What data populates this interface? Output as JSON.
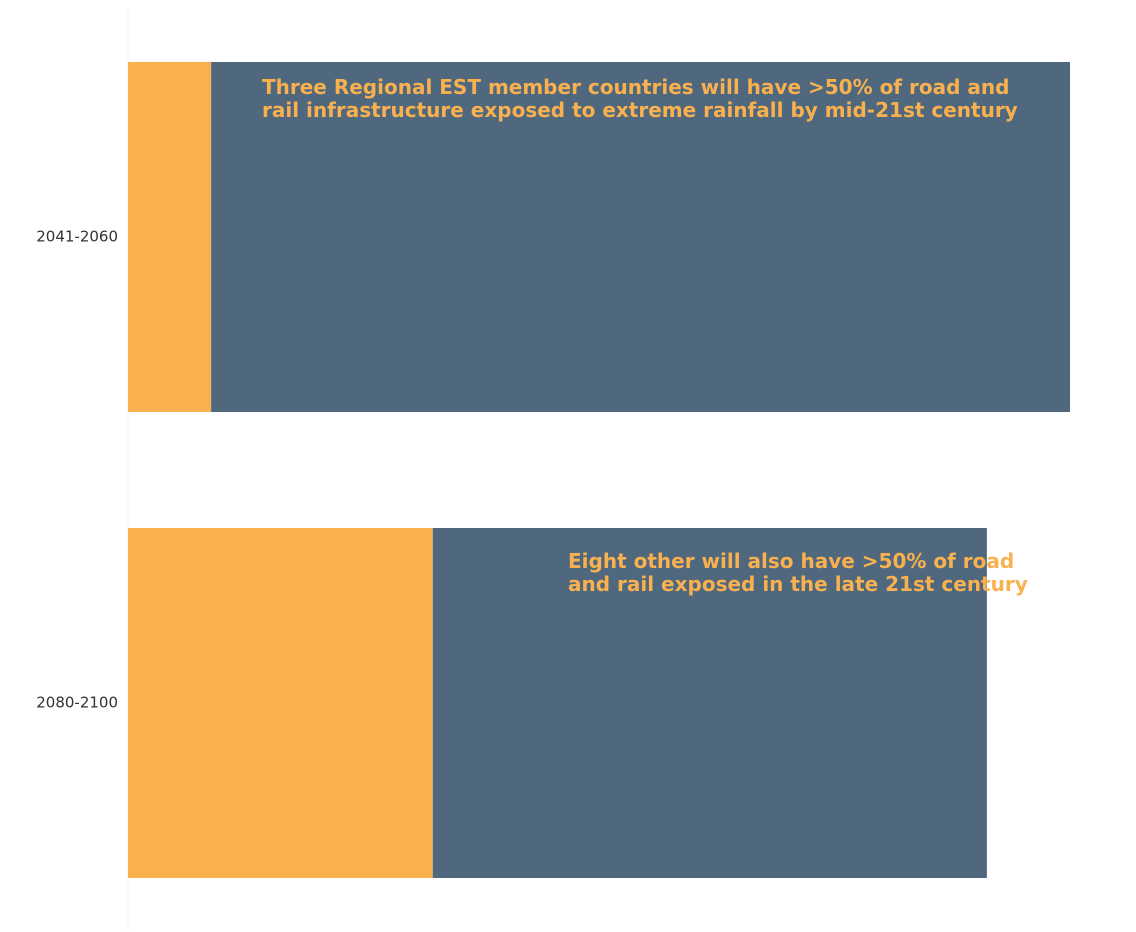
{
  "chart_data": {
    "type": "bar",
    "orientation": "horizontal",
    "stacked": true,
    "categories": [
      "2041-2060",
      "2080-2100"
    ],
    "series": [
      {
        "values": [
          3,
          11
        ]
      },
      {
        "values": [
          31,
          20
        ]
      }
    ],
    "xlim": [
      0,
      34
    ],
    "grid": false,
    "annotations": [
      "Three Regional EST member countries will have >50% of road and rail infrastructure exposed to extreme rainfall by mid-21st century",
      "Eight other will also have >50% of road and rail exposed in the late 21st century"
    ],
    "colors": {
      "series_0": "#F9B04E",
      "series_1": "#4F687E",
      "annotation_text": "#F9B04E",
      "axis_line": "#E6E6E6"
    }
  }
}
